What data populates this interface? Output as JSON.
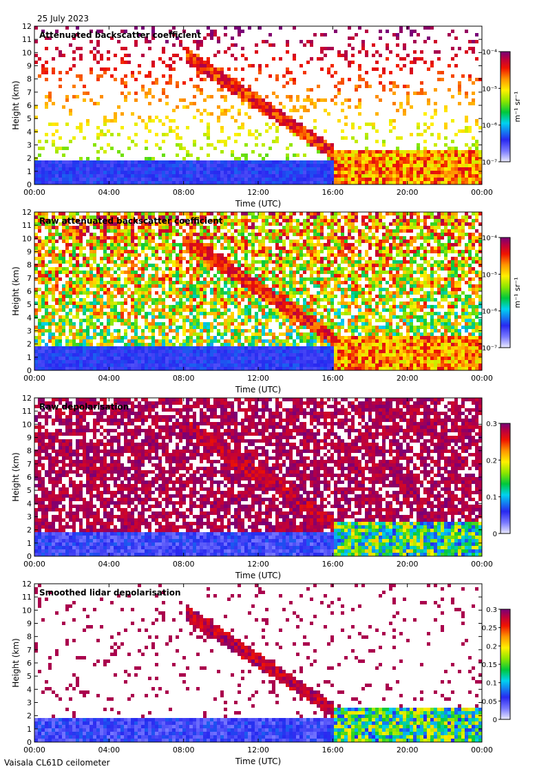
{
  "header": {
    "date": "25 July 2023"
  },
  "footer": {
    "instrument": "Vaisala CL61D ceilometer"
  },
  "colors": {
    "panel_background": "#ffffff",
    "axis": "#000000",
    "low": "#3030ff",
    "high": "#7a0070"
  },
  "chart_data": [
    {
      "type": "heatmap",
      "title": "Attenuated backscatter coefficient",
      "xlabel": "Time (UTC)",
      "ylabel": "Height (km)",
      "x_ticks": [
        "00:00",
        "04:00",
        "08:00",
        "12:00",
        "16:00",
        "20:00",
        "00:00"
      ],
      "y_ticks": [
        0,
        1,
        2,
        3,
        4,
        5,
        6,
        7,
        8,
        9,
        10,
        11,
        12
      ],
      "xlim_hours": [
        0,
        24
      ],
      "ylim_km": [
        0,
        12
      ],
      "colorbar": {
        "scale": "log",
        "range": [
          1e-07,
          0.0001
        ],
        "tick_labels": [
          "10⁻⁷",
          "10⁻⁶",
          "10⁻⁵",
          "10⁻⁴"
        ],
        "unit_label": "m⁻¹ sr⁻¹"
      },
      "features": [
        {
          "name": "boundary layer",
          "time_hours": [
            0,
            16
          ],
          "height_km": [
            0,
            2
          ]
        },
        {
          "name": "descending cloud",
          "start": {
            "time_hours": 8,
            "height_km": 10
          },
          "end": {
            "time_hours": 16,
            "height_km": 2.5
          }
        },
        {
          "name": "low cloud layer",
          "time_hours": [
            16,
            24
          ],
          "height_km": [
            0,
            2.8
          ]
        }
      ],
      "grid": false,
      "legend": "colorbar-right"
    },
    {
      "type": "heatmap",
      "title": "Raw attenuated backscatter coefficient",
      "xlabel": "Time (UTC)",
      "ylabel": "Height (km)",
      "x_ticks": [
        "00:00",
        "04:00",
        "08:00",
        "12:00",
        "16:00",
        "20:00",
        "00:00"
      ],
      "y_ticks": [
        0,
        1,
        2,
        3,
        4,
        5,
        6,
        7,
        8,
        9,
        10,
        11,
        12
      ],
      "xlim_hours": [
        0,
        24
      ],
      "ylim_km": [
        0,
        12
      ],
      "colorbar": {
        "scale": "log",
        "range": [
          1e-07,
          0.0001
        ],
        "tick_labels": [
          "10⁻⁷",
          "10⁻⁶",
          "10⁻⁵",
          "10⁻⁴"
        ],
        "unit_label": "m⁻¹ sr⁻¹"
      },
      "grid": false,
      "legend": "colorbar-right"
    },
    {
      "type": "heatmap",
      "title": "Raw depolarisation",
      "xlabel": "Time (UTC)",
      "ylabel": "Height (km)",
      "x_ticks": [
        "00:00",
        "04:00",
        "08:00",
        "12:00",
        "16:00",
        "20:00",
        "00:00"
      ],
      "y_ticks": [
        0,
        1,
        2,
        3,
        4,
        5,
        6,
        7,
        8,
        9,
        10,
        11,
        12
      ],
      "xlim_hours": [
        0,
        24
      ],
      "ylim_km": [
        0,
        12
      ],
      "colorbar": {
        "scale": "linear",
        "range": [
          0,
          0.3
        ],
        "tick_labels": [
          "0",
          "0.1",
          "0.2",
          "0.3"
        ]
      },
      "grid": false,
      "legend": "colorbar-right"
    },
    {
      "type": "heatmap",
      "title": "Smoothed lidar depolarisation",
      "xlabel": "Time (UTC)",
      "ylabel": "Height (km)",
      "x_ticks": [
        "00:00",
        "04:00",
        "08:00",
        "12:00",
        "16:00",
        "20:00",
        "00:00"
      ],
      "y_ticks": [
        0,
        1,
        2,
        3,
        4,
        5,
        6,
        7,
        8,
        9,
        10,
        11,
        12
      ],
      "xlim_hours": [
        0,
        24
      ],
      "ylim_km": [
        0,
        12
      ],
      "colorbar": {
        "scale": "linear",
        "range": [
          0,
          0.3
        ],
        "tick_labels": [
          "0",
          "0.05",
          "0.1",
          "0.15",
          "0.2",
          "0.25",
          "0.3"
        ]
      },
      "grid": false,
      "legend": "colorbar-right"
    }
  ]
}
